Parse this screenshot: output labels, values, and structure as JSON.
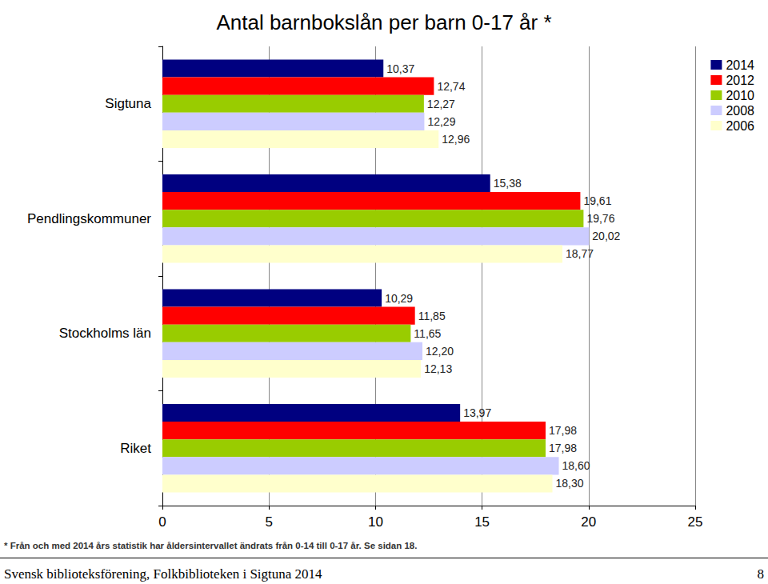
{
  "chart_data": {
    "type": "bar",
    "title": "Antal barnbokslån per barn 0-17 år *",
    "orientation": "horizontal",
    "categories": [
      "Sigtuna",
      "Pendlingskommuner",
      "Stockholms län",
      "Riket"
    ],
    "series": [
      {
        "name": "2014",
        "color": "#000080",
        "values": [
          10.37,
          15.38,
          10.29,
          13.97
        ],
        "value_labels": [
          "10,37",
          "15,38",
          "10,29",
          "13,97"
        ]
      },
      {
        "name": "2012",
        "color": "#ff0000",
        "values": [
          12.74,
          19.61,
          11.85,
          17.98
        ],
        "value_labels": [
          "12,74",
          "19,61",
          "11,85",
          "17,98"
        ]
      },
      {
        "name": "2010",
        "color": "#99cc00",
        "values": [
          12.27,
          19.76,
          11.65,
          17.98
        ],
        "value_labels": [
          "12,27",
          "19,76",
          "11,65",
          "17,98"
        ]
      },
      {
        "name": "2008",
        "color": "#ccccff",
        "values": [
          12.29,
          20.02,
          12.2,
          18.6
        ],
        "value_labels": [
          "12,29",
          "20,02",
          "12,20",
          "18,60"
        ]
      },
      {
        "name": "2006",
        "color": "#ffffcc",
        "values": [
          12.96,
          18.77,
          12.13,
          18.3
        ],
        "value_labels": [
          "12,96",
          "18,77",
          "12,13",
          "18,30"
        ]
      }
    ],
    "xlim": [
      0,
      25
    ],
    "xticks": [
      0,
      5,
      10,
      15,
      20,
      25
    ],
    "grid": true,
    "legend": "top-right",
    "data_labels": true,
    "annotations": [
      "* Från och med 2014 års statistik har åldersintervallet ändrats från 0-14 till 0-17 år. Se sidan 18."
    ]
  },
  "footer": {
    "text": "Svensk biblioteksförening, Folkbiblioteken i Sigtuna 2014",
    "page": "8"
  }
}
